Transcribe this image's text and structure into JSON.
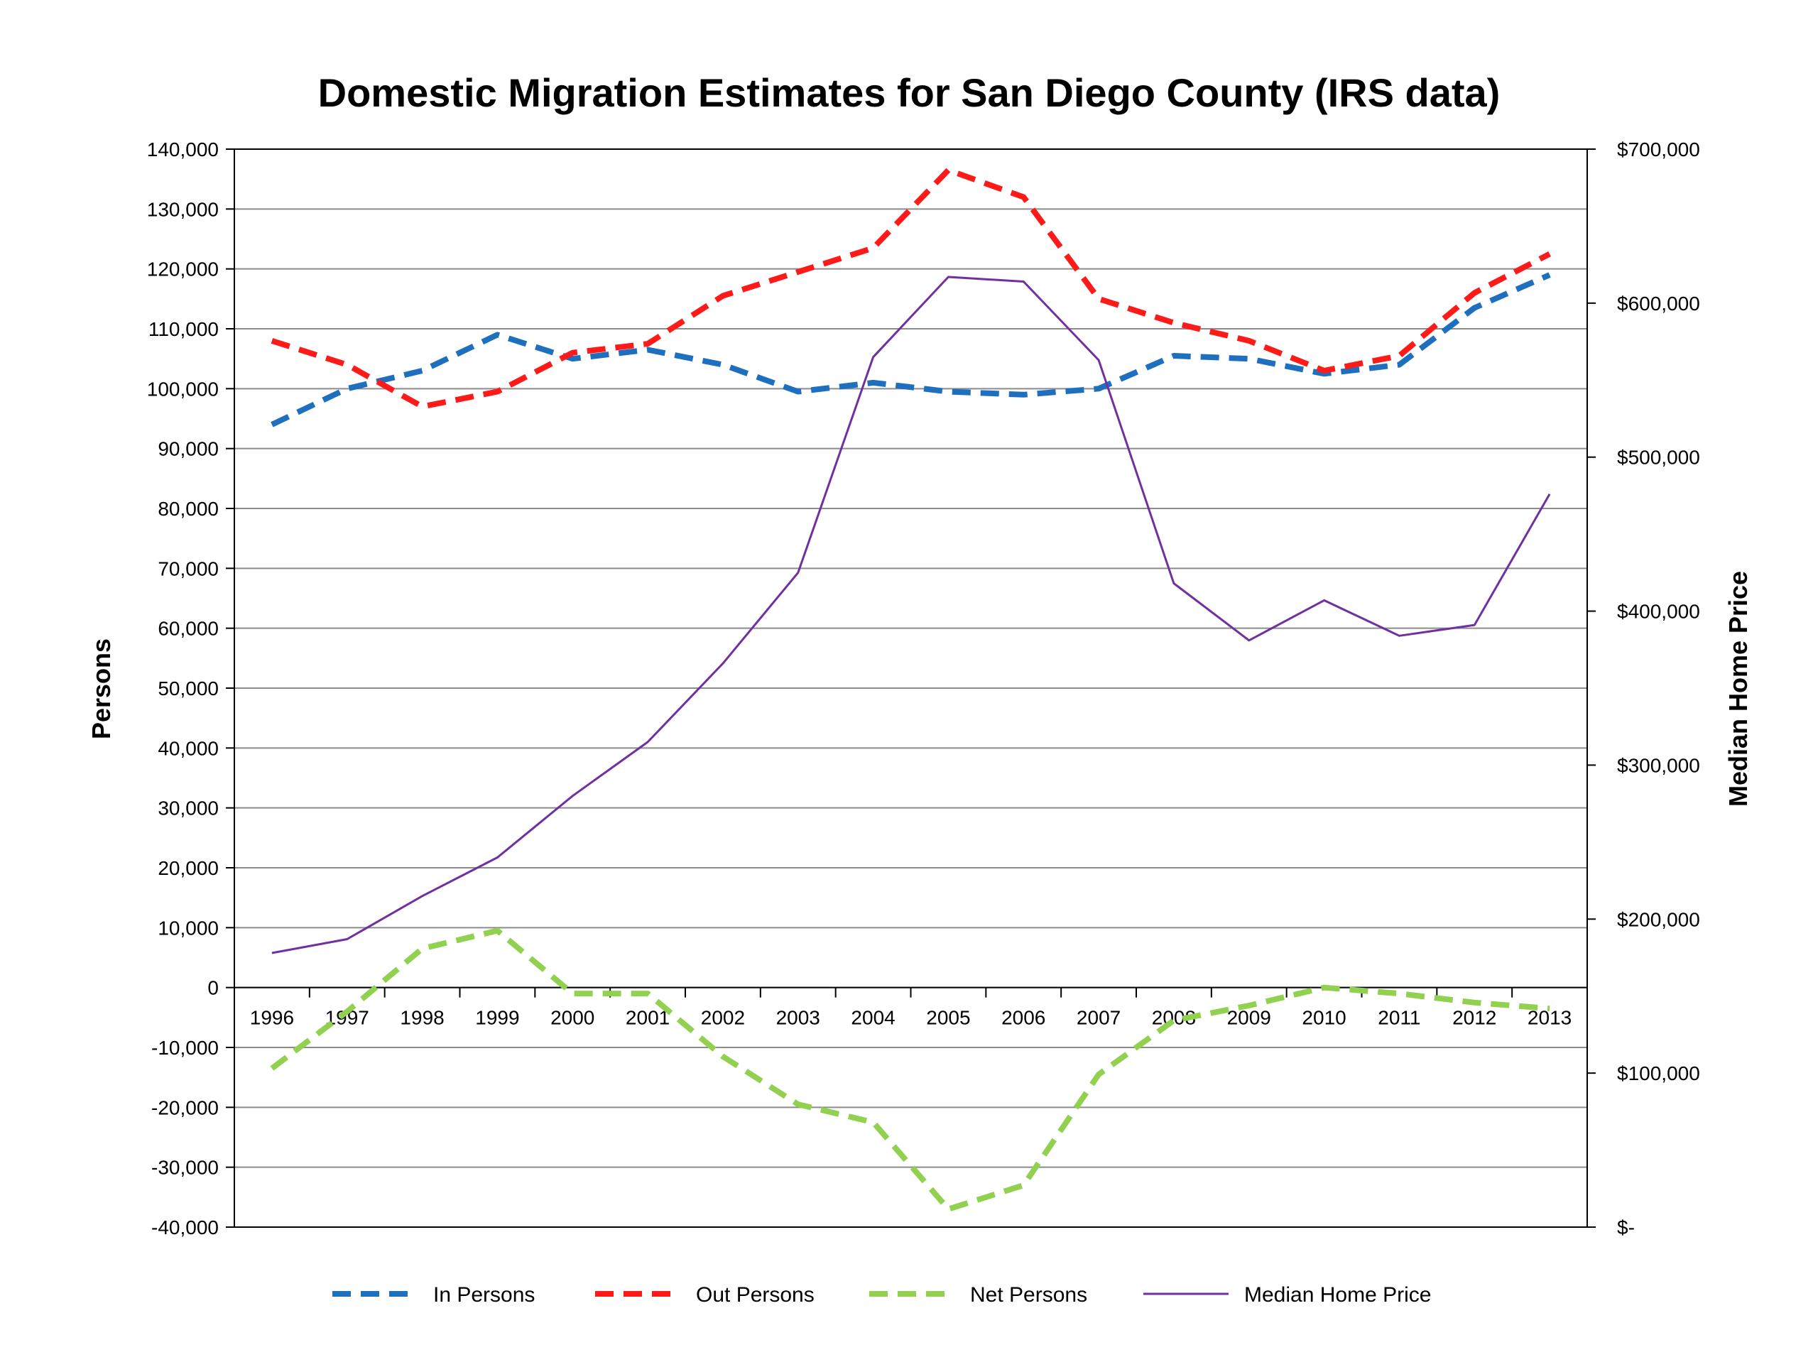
{
  "chart_data": {
    "type": "line",
    "title": "Domestic Migration Estimates for San Diego County (IRS data)",
    "ylabel": "Persons",
    "y2label": "Median Home Price",
    "categories": [
      "1996",
      "1997",
      "1998",
      "1999",
      "2000",
      "2001",
      "2002",
      "2003",
      "2004",
      "2005",
      "2006",
      "2007",
      "2008",
      "2009",
      "2010",
      "2011",
      "2012",
      "2013"
    ],
    "ylim": [
      -40000,
      140000
    ],
    "yticks": [
      {
        "value": 140000,
        "label": "140,000"
      },
      {
        "value": 130000,
        "label": "130,000"
      },
      {
        "value": 120000,
        "label": "120,000"
      },
      {
        "value": 110000,
        "label": "110,000"
      },
      {
        "value": 100000,
        "label": "100,000"
      },
      {
        "value": 90000,
        "label": "90,000"
      },
      {
        "value": 80000,
        "label": "80,000"
      },
      {
        "value": 70000,
        "label": "70,000"
      },
      {
        "value": 60000,
        "label": "60,000"
      },
      {
        "value": 50000,
        "label": "50,000"
      },
      {
        "value": 40000,
        "label": "40,000"
      },
      {
        "value": 30000,
        "label": "30,000"
      },
      {
        "value": 20000,
        "label": "20,000"
      },
      {
        "value": 10000,
        "label": "10,000"
      },
      {
        "value": 0,
        "label": "0"
      },
      {
        "value": -10000,
        "label": "-10,000"
      },
      {
        "value": -20000,
        "label": "-20,000"
      },
      {
        "value": -30000,
        "label": "-30,000"
      },
      {
        "value": -40000,
        "label": "-40,000"
      }
    ],
    "y2lim": [
      0,
      700000
    ],
    "y2ticks": [
      {
        "value": 700000,
        "label": "$700,000"
      },
      {
        "value": 600000,
        "label": "$600,000"
      },
      {
        "value": 500000,
        "label": "$500,000"
      },
      {
        "value": 400000,
        "label": "$400,000"
      },
      {
        "value": 300000,
        "label": "$300,000"
      },
      {
        "value": 200000,
        "label": "$200,000"
      },
      {
        "value": 100000,
        "label": "$100,000"
      },
      {
        "value": 0,
        "label": "$-"
      }
    ],
    "grid": true,
    "legend_position": "bottom",
    "series": [
      {
        "name": "In Persons",
        "axis": "left",
        "color": "#1f6fbf",
        "dash": true,
        "values": [
          94000,
          100000,
          103000,
          109000,
          105000,
          106500,
          104000,
          99500,
          101000,
          99500,
          99000,
          100000,
          105500,
          105000,
          102500,
          104000,
          113500,
          119000
        ]
      },
      {
        "name": "Out Persons",
        "axis": "left",
        "color": "#ff1a1a",
        "dash": true,
        "values": [
          108000,
          104000,
          97000,
          99500,
          106000,
          107500,
          115500,
          119500,
          123500,
          136500,
          132000,
          115000,
          111000,
          108000,
          103000,
          105500,
          116000,
          122500
        ]
      },
      {
        "name": "Net Persons",
        "axis": "left",
        "color": "#92d050",
        "dash": true,
        "values": [
          -13500,
          -4000,
          6500,
          9500,
          -1000,
          -1000,
          -11500,
          -19500,
          -22500,
          -37000,
          -33000,
          -14500,
          -5500,
          -3000,
          0,
          -1000,
          -2500,
          -3500
        ]
      },
      {
        "name": "Median Home Price",
        "axis": "right",
        "color": "#7030a0",
        "dash": false,
        "values": [
          178000,
          187000,
          215000,
          240000,
          280000,
          315000,
          366000,
          425000,
          565000,
          617000,
          614000,
          563000,
          418000,
          381000,
          407000,
          384000,
          391000,
          476000
        ]
      }
    ]
  }
}
